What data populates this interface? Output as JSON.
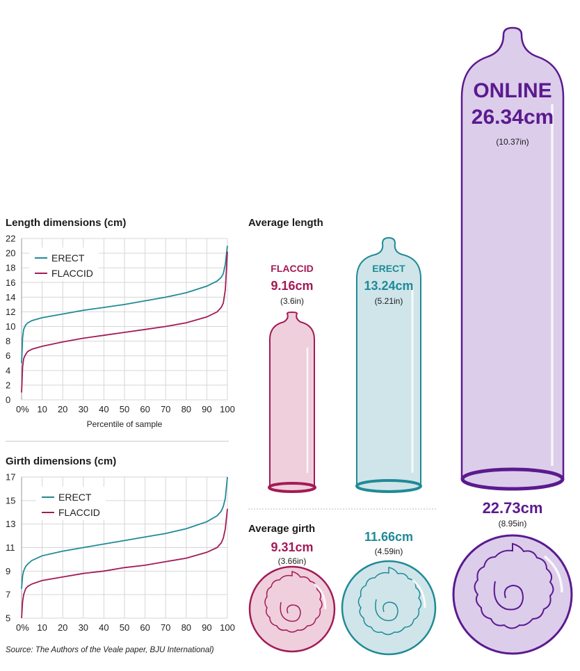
{
  "length_chart": {
    "title": "Length dimensions (cm)",
    "xlabel": "Percentile of sample"
  },
  "girth_chart": {
    "title": "Girth dimensions (cm)"
  },
  "average_length": {
    "title": "Average length",
    "flaccid": {
      "label": "FLACCID",
      "value": "9.16cm",
      "inches": "(3.6in)"
    },
    "erect": {
      "label": "ERECT",
      "value": "13.24cm",
      "inches": "(5.21in)"
    },
    "online": {
      "label": "ONLINE",
      "value": "26.34cm",
      "inches": "(10.37in)"
    }
  },
  "average_girth": {
    "title": "Average girth",
    "flaccid": {
      "value": "9.31cm",
      "inches": "(3.66in)"
    },
    "erect": {
      "value": "11.66cm",
      "inches": "(4.59in)"
    },
    "online": {
      "value": "22.73cm",
      "inches": "(8.95in)"
    }
  },
  "source": "Source: The Authors of the Veale paper, BJU International)",
  "colors": {
    "erect": "#1f8a96",
    "flaccid": "#a31a56",
    "online": "#5b1a8e",
    "erect_fill": "#cfe5ea",
    "flaccid_fill": "#efcfdc",
    "online_fill": "#dccdeb",
    "grid": "#d6d6d6"
  },
  "chart_data": [
    {
      "type": "line",
      "title": "Length dimensions (cm)",
      "xlabel": "Percentile of sample",
      "ylabel": "",
      "xlim": [
        0,
        100
      ],
      "ylim": [
        0,
        22
      ],
      "x_ticks": [
        "0%",
        "10",
        "20",
        "30",
        "40",
        "50",
        "60",
        "70",
        "80",
        "90",
        "100"
      ],
      "y_ticks": [
        0,
        2,
        4,
        6,
        8,
        10,
        12,
        14,
        16,
        18,
        20,
        22
      ],
      "grid": true,
      "legend": "top-left",
      "series": [
        {
          "name": "ERECT",
          "x": [
            0,
            0.5,
            1,
            2,
            3,
            5,
            10,
            20,
            30,
            40,
            50,
            60,
            70,
            80,
            90,
            95,
            97,
            98,
            99,
            100
          ],
          "y": [
            5,
            8.5,
            9.6,
            10.2,
            10.5,
            10.8,
            11.2,
            11.7,
            12.2,
            12.6,
            13.0,
            13.5,
            14.0,
            14.6,
            15.5,
            16.2,
            16.7,
            17.2,
            18.5,
            21
          ]
        },
        {
          "name": "FLACCID",
          "x": [
            0,
            0.5,
            1,
            2,
            3,
            5,
            10,
            20,
            30,
            40,
            50,
            60,
            70,
            80,
            90,
            95,
            97,
            98,
            99,
            100
          ],
          "y": [
            1,
            4.5,
            5.6,
            6.2,
            6.6,
            6.9,
            7.3,
            7.9,
            8.4,
            8.8,
            9.2,
            9.6,
            10.0,
            10.5,
            11.3,
            12.0,
            12.6,
            13.2,
            15.0,
            20.2
          ]
        }
      ]
    },
    {
      "type": "line",
      "title": "Girth dimensions (cm)",
      "xlabel": "",
      "ylabel": "",
      "xlim": [
        0,
        100
      ],
      "ylim": [
        5,
        17
      ],
      "x_ticks": [
        "0%",
        "10",
        "20",
        "30",
        "40",
        "50",
        "60",
        "70",
        "80",
        "90",
        "100"
      ],
      "y_ticks": [
        5,
        7,
        9,
        11,
        13,
        15,
        17
      ],
      "grid": true,
      "legend": "top-left",
      "series": [
        {
          "name": "ERECT",
          "x": [
            0,
            0.5,
            1,
            2,
            3,
            5,
            10,
            20,
            30,
            40,
            50,
            60,
            70,
            80,
            90,
            95,
            97,
            98,
            99,
            100
          ],
          "y": [
            7.5,
            8.6,
            9.0,
            9.4,
            9.6,
            9.9,
            10.3,
            10.7,
            11.0,
            11.3,
            11.6,
            11.9,
            12.2,
            12.6,
            13.2,
            13.7,
            14.1,
            14.5,
            15.2,
            17
          ]
        },
        {
          "name": "FLACCID",
          "x": [
            0,
            0.5,
            1,
            2,
            3,
            5,
            10,
            20,
            30,
            40,
            50,
            60,
            70,
            80,
            90,
            95,
            97,
            98,
            99,
            100
          ],
          "y": [
            5,
            6.4,
            7.0,
            7.5,
            7.7,
            7.9,
            8.2,
            8.5,
            8.8,
            9.0,
            9.3,
            9.5,
            9.8,
            10.1,
            10.6,
            11.0,
            11.4,
            11.8,
            12.6,
            14.3
          ]
        }
      ]
    }
  ]
}
